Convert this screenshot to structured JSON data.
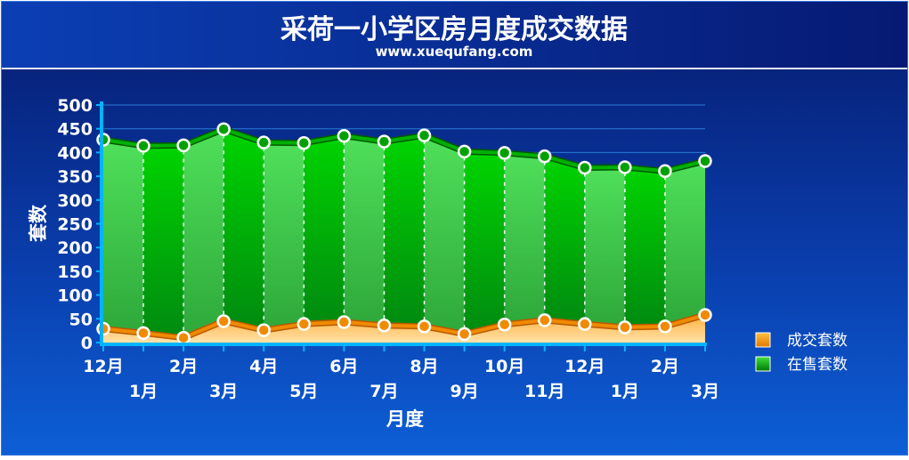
{
  "chart_data": {
    "type": "area",
    "title": "采荷一小学区房月度成交数据",
    "subtitle": "www.xuequfang.com",
    "xlabel": "月度",
    "ylabel": "套数",
    "ylim": [
      0,
      500
    ],
    "yticks": [
      0,
      50,
      100,
      150,
      200,
      250,
      300,
      350,
      400,
      450,
      500
    ],
    "categories": [
      "12月",
      "1月",
      "2月",
      "3月",
      "4月",
      "5月",
      "6月",
      "7月",
      "8月",
      "9月",
      "10月",
      "11月",
      "12月",
      "1月",
      "2月",
      "3月"
    ],
    "series": [
      {
        "name": "成交套数",
        "color": "#f08a00",
        "values": [
          29,
          20,
          10,
          45,
          26,
          39,
          43,
          36,
          34,
          18,
          38,
          47,
          39,
          32,
          34,
          58
        ]
      },
      {
        "name": "在售套数",
        "color": "#00a000",
        "values": [
          427,
          414,
          415,
          449,
          421,
          420,
          435,
          423,
          436,
          402,
          399,
          392,
          368,
          369,
          361,
          382
        ]
      }
    ],
    "legend_position": "right",
    "grid": true
  }
}
